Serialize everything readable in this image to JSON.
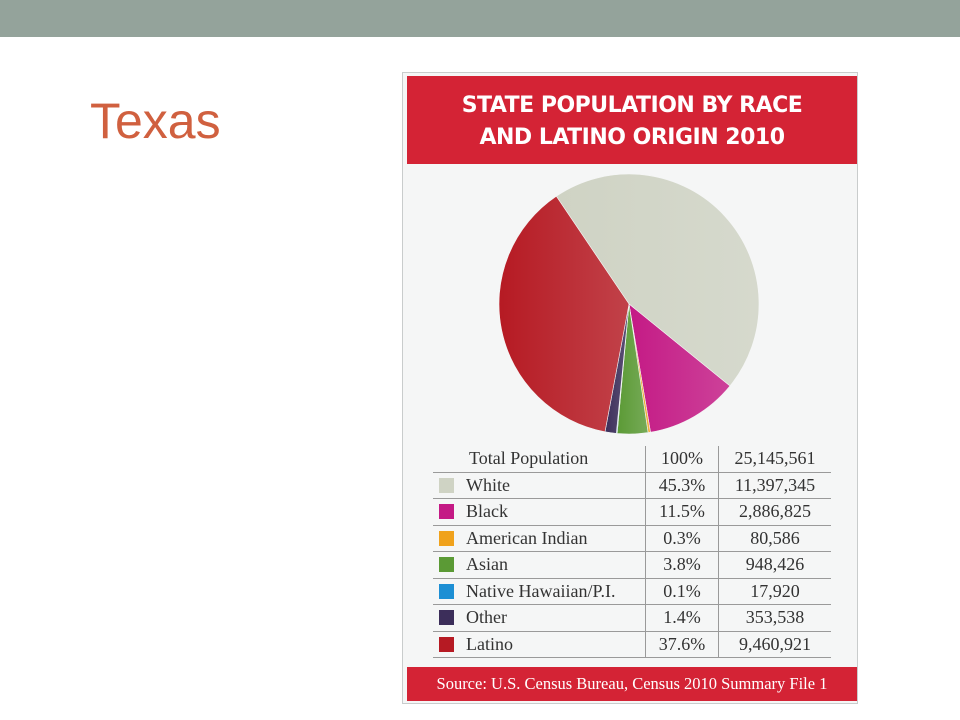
{
  "slide": {
    "title": "Texas"
  },
  "chart_data": {
    "type": "pie",
    "title": "STATE POPULATION BY RACE AND LATINO ORIGIN 2010",
    "title_lines": [
      "STATE POPULATION BY RACE",
      "AND LATINO ORIGIN 2010"
    ],
    "table_header": {
      "label": "Total Population",
      "percent": "100%",
      "count": "25,145,561"
    },
    "series": [
      {
        "name": "White",
        "percent_label": "45.3%",
        "percent": 45.3,
        "count": "11,397,345",
        "color": "#cfd3c4"
      },
      {
        "name": "Black",
        "percent_label": "11.5%",
        "percent": 11.5,
        "count": "2,886,825",
        "color": "#c41a85"
      },
      {
        "name": "American Indian",
        "percent_label": "0.3%",
        "percent": 0.3,
        "count": "80,586",
        "color": "#f0a21c"
      },
      {
        "name": "Asian",
        "percent_label": "3.8%",
        "percent": 3.8,
        "count": "948,426",
        "color": "#5b9a35"
      },
      {
        "name": "Native Hawaiian/P.I.",
        "percent_label": "0.1%",
        "percent": 0.1,
        "count": "17,920",
        "color": "#1d8fd4"
      },
      {
        "name": "Other",
        "percent_label": "1.4%",
        "percent": 1.4,
        "count": "353,538",
        "color": "#3c2e5a"
      },
      {
        "name": "Latino",
        "percent_label": "37.6%",
        "percent": 37.6,
        "count": "9,460,921",
        "color": "#b61a23"
      }
    ],
    "start_angle_deg": -34,
    "source": "Source: U.S. Census Bureau, Census 2010 Summary File 1"
  },
  "colors": {
    "header_red": "#d42335",
    "title_orange": "#d0603f",
    "topbar": "#94a39b"
  }
}
